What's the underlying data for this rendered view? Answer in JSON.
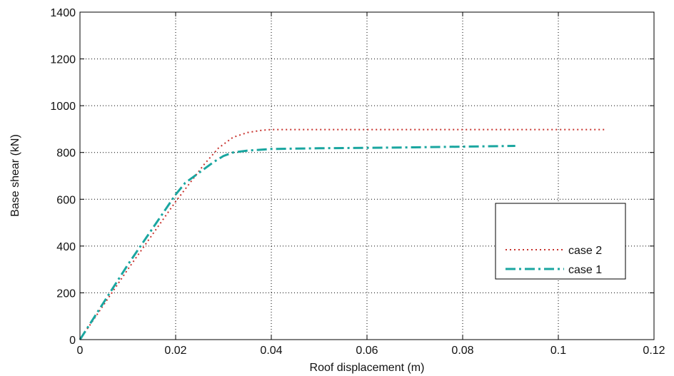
{
  "chart_data": {
    "type": "line",
    "xlabel": "Roof displacement (m)",
    "ylabel": "Base shear (kN)",
    "xlim": [
      0,
      0.12
    ],
    "ylim": [
      0,
      1400
    ],
    "xticks": [
      0,
      0.02,
      0.04,
      0.06,
      0.08,
      0.1,
      0.12
    ],
    "xtick_labels": [
      "0",
      "0.02",
      "0.04",
      "0.06",
      "0.08",
      "0.1",
      "0.12"
    ],
    "yticks": [
      0,
      200,
      400,
      600,
      800,
      1000,
      1200,
      1400
    ],
    "ytick_labels": [
      "0",
      "200",
      "400",
      "600",
      "800",
      "1000",
      "1200",
      "1400"
    ],
    "grid": true,
    "legend_position": "right",
    "series": [
      {
        "name": "case 2",
        "color": "#c8342f",
        "style": "dotted",
        "x": [
          0,
          0.005,
          0.01,
          0.015,
          0.02,
          0.023,
          0.026,
          0.029,
          0.032,
          0.035,
          0.038,
          0.04,
          0.05,
          0.06,
          0.07,
          0.08,
          0.09,
          0.1,
          0.11
        ],
        "y": [
          0,
          150,
          300,
          445,
          590,
          670,
          750,
          820,
          865,
          885,
          895,
          898,
          898,
          898,
          898,
          898,
          898,
          898,
          898
        ]
      },
      {
        "name": "case 1",
        "color": "#1aa6a0",
        "style": "dashdot",
        "x": [
          0,
          0.005,
          0.01,
          0.015,
          0.02,
          0.022,
          0.025,
          0.028,
          0.03,
          0.032,
          0.035,
          0.04,
          0.05,
          0.06,
          0.07,
          0.08,
          0.091
        ],
        "y": [
          0,
          160,
          320,
          470,
          620,
          670,
          715,
          760,
          785,
          800,
          808,
          815,
          818,
          820,
          822,
          825,
          828
        ]
      }
    ]
  }
}
